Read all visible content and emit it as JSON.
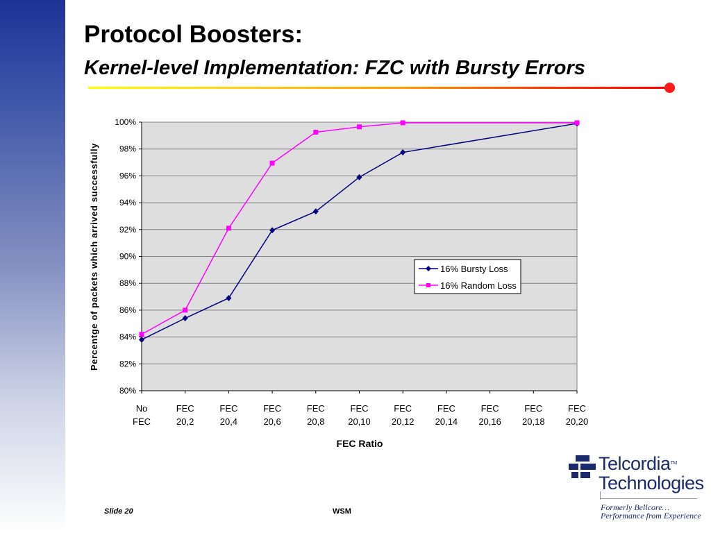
{
  "slide": {
    "title": "Protocol Boosters:",
    "subtitle": "Kernel-level Implementation: FZC with Bursty Errors",
    "footer_left": "Slide 20",
    "footer_center": "WSM",
    "accent_color": "#ff0000",
    "sidebar_color": "#1c3396"
  },
  "logo": {
    "line1": "Telcordia",
    "tm": "TM",
    "line2": "Technologies",
    "tagline1": "Formerly Bellcore…",
    "tagline2": "Performance from Experience",
    "icon": "telcordia-logo-icon"
  },
  "chart_data": {
    "type": "line",
    "title": "",
    "xlabel": "FEC Ratio",
    "ylabel": "Percentge of packets which arrived successfully",
    "categories": [
      [
        "No",
        "FEC"
      ],
      [
        "FEC",
        "20,2"
      ],
      [
        "FEC",
        "20,4"
      ],
      [
        "FEC",
        "20,6"
      ],
      [
        "FEC",
        "20,8"
      ],
      [
        "FEC",
        "20,10"
      ],
      [
        "FEC",
        "20,12"
      ],
      [
        "FEC",
        "20,14"
      ],
      [
        "FEC",
        "20,16"
      ],
      [
        "FEC",
        "20,18"
      ],
      [
        "FEC",
        "20,20"
      ]
    ],
    "ylim": [
      80,
      100
    ],
    "yticks": [
      80,
      82,
      84,
      86,
      88,
      90,
      92,
      94,
      96,
      98,
      100
    ],
    "ytick_labels": [
      "80%",
      "82%",
      "84%",
      "86%",
      "88%",
      "90%",
      "92%",
      "94%",
      "96%",
      "98%",
      "100%"
    ],
    "grid": true,
    "legend_position": "right",
    "series": [
      {
        "name": "16% Bursty Loss",
        "color": "#000080",
        "marker": "diamond",
        "points": [
          [
            0,
            83.8
          ],
          [
            1,
            85.4
          ],
          [
            2,
            86.9
          ],
          [
            3,
            91.95
          ],
          [
            4,
            93.35
          ],
          [
            5,
            95.9
          ],
          [
            6,
            97.75
          ],
          [
            10,
            99.9
          ]
        ]
      },
      {
        "name": "16% Random Loss",
        "color": "#ff00ff",
        "marker": "square",
        "points": [
          [
            0,
            84.2
          ],
          [
            1,
            86.0
          ],
          [
            2,
            92.1
          ],
          [
            3,
            96.95
          ],
          [
            4,
            99.25
          ],
          [
            5,
            99.65
          ],
          [
            6,
            99.95
          ],
          [
            10,
            99.95
          ]
        ]
      }
    ]
  }
}
